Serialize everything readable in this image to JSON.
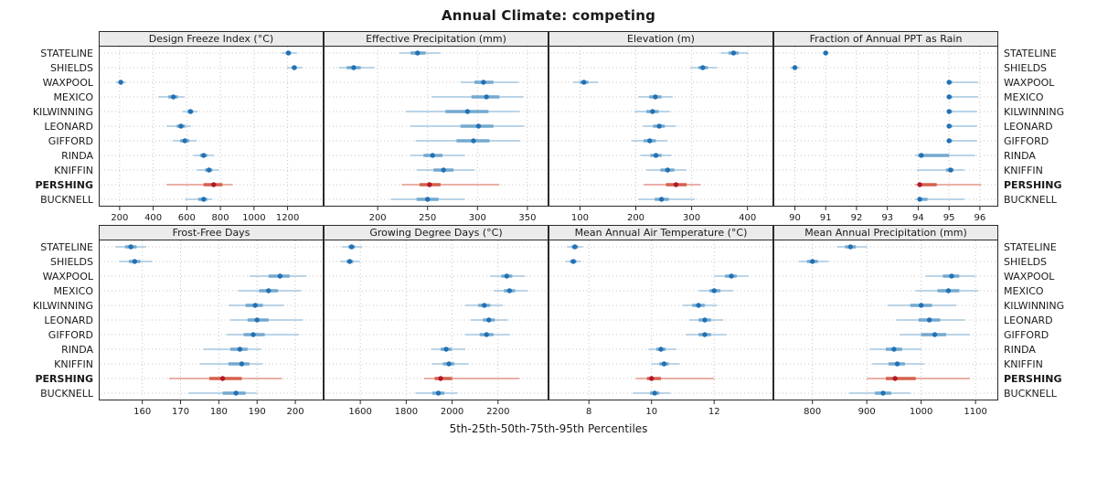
{
  "title": "Annual Climate: competing",
  "footer": "5th-25th-50th-75th-95th Percentiles",
  "colors": {
    "dot": "#2171b5",
    "range": "#74a9cf",
    "highlight_dot": "#b2182b",
    "highlight_range": "#d6604d",
    "grid": "#c4c4c4",
    "strip_bg": "#ebebeb",
    "border": "#2a2a2a",
    "text": "#1a1a1a"
  },
  "chart_data": {
    "type": "dotplot-percentiles",
    "percentiles": [
      5,
      25,
      50,
      75,
      95
    ],
    "highlight_station": "PERSHING",
    "stations": [
      "STATELINE",
      "SHIELDS",
      "WAXPOOL",
      "MEXICO",
      "KILWINNING",
      "LEONARD",
      "GIFFORD",
      "RINDA",
      "KNIFFIN",
      "PERSHING",
      "BUCKNELL"
    ],
    "panels": [
      {
        "title": "Design Freeze Index (°C)",
        "xlim": [
          130,
          1360
        ],
        "ticks": [
          200,
          400,
          600,
          800,
          1000,
          1200
        ],
        "values": [
          [
            1165,
            1190,
            1205,
            1220,
            1255
          ],
          [
            1195,
            1225,
            1240,
            1255,
            1290
          ],
          [
            180,
            198,
            207,
            216,
            235
          ],
          [
            430,
            490,
            520,
            548,
            585
          ],
          [
            575,
            605,
            622,
            638,
            665
          ],
          [
            480,
            540,
            565,
            590,
            625
          ],
          [
            515,
            560,
            588,
            615,
            660
          ],
          [
            640,
            678,
            700,
            722,
            760
          ],
          [
            660,
            708,
            732,
            752,
            792
          ],
          [
            480,
            700,
            760,
            812,
            872
          ],
          [
            590,
            668,
            700,
            722,
            752
          ]
        ]
      },
      {
        "title": "Effective Precipitation (mm)",
        "xlim": [
          155,
          362
        ],
        "ticks": [
          200,
          250,
          300,
          350
        ],
        "values": [
          [
            222,
            233,
            240,
            248,
            263
          ],
          [
            161,
            169,
            176,
            183,
            197
          ],
          [
            283,
            297,
            306,
            316,
            341
          ],
          [
            254,
            294,
            309,
            322,
            346
          ],
          [
            228,
            268,
            290,
            311,
            342
          ],
          [
            233,
            283,
            301,
            316,
            347
          ],
          [
            238,
            279,
            296,
            312,
            343
          ],
          [
            233,
            246,
            255,
            265,
            287
          ],
          [
            239,
            256,
            266,
            276,
            297
          ],
          [
            224,
            242,
            252,
            263,
            322
          ],
          [
            213,
            239,
            250,
            261,
            287
          ]
        ]
      },
      {
        "title": "Elevation (m)",
        "xlim": [
          60,
          430
        ],
        "ticks": [
          100,
          200,
          300,
          400
        ],
        "values": [
          [
            352,
            366,
            375,
            384,
            401
          ],
          [
            298,
            312,
            320,
            329,
            346
          ],
          [
            88,
            100,
            107,
            115,
            132
          ],
          [
            204,
            224,
            235,
            246,
            266
          ],
          [
            198,
            219,
            230,
            241,
            261
          ],
          [
            213,
            231,
            242,
            252,
            272
          ],
          [
            193,
            214,
            225,
            236,
            256
          ],
          [
            208,
            226,
            236,
            246,
            263
          ],
          [
            219,
            244,
            257,
            269,
            291
          ],
          [
            214,
            254,
            272,
            291,
            316
          ],
          [
            204,
            234,
            246,
            259,
            306
          ]
        ]
      },
      {
        "title": "Fraction of Annual PPT as Rain",
        "xlim": [
          89.6,
          96.3
        ],
        "ticks": [
          90,
          91,
          92,
          93,
          94,
          95,
          96
        ],
        "values": [
          [
            90.9,
            90.97,
            91.0,
            91.03,
            91.1
          ],
          [
            89.85,
            89.95,
            90.0,
            90.05,
            90.15
          ],
          [
            94.95,
            95.0,
            95.0,
            95.1,
            95.95
          ],
          [
            94.95,
            95.0,
            95.0,
            95.1,
            95.95
          ],
          [
            94.95,
            95.0,
            95.0,
            95.1,
            95.9
          ],
          [
            94.95,
            95.0,
            95.0,
            95.1,
            95.9
          ],
          [
            94.95,
            95.0,
            95.0,
            95.1,
            95.9
          ],
          [
            93.9,
            94.0,
            94.1,
            95.0,
            95.85
          ],
          [
            93.95,
            94.9,
            95.05,
            95.15,
            95.5
          ],
          [
            93.9,
            94.0,
            94.05,
            94.6,
            96.05
          ],
          [
            93.9,
            94.0,
            94.05,
            94.3,
            95.5
          ]
        ]
      },
      {
        "title": "Frost-Free Days",
        "xlim": [
          151,
          205
        ],
        "ticks": [
          160,
          170,
          180,
          190,
          200
        ],
        "values": [
          [
            153,
            155.5,
            157,
            158.5,
            161
          ],
          [
            154,
            156.5,
            158,
            159.5,
            162.5
          ],
          [
            188,
            193,
            196,
            198.5,
            203
          ],
          [
            185,
            190.5,
            193,
            195.5,
            201.5
          ],
          [
            182.5,
            187,
            189.5,
            191.5,
            197
          ],
          [
            183,
            187.5,
            190,
            193,
            202
          ],
          [
            182,
            186.5,
            189,
            192,
            201
          ],
          [
            176,
            183,
            185.5,
            187.5,
            191
          ],
          [
            175,
            182.5,
            186,
            188,
            191.5
          ],
          [
            167,
            177.5,
            181,
            186,
            196.5
          ],
          [
            172,
            181,
            184.5,
            187,
            190
          ]
        ]
      },
      {
        "title": "Growing Degree Days (°C)",
        "xlim": [
          1480,
          2380
        ],
        "ticks": [
          1600,
          1800,
          2000,
          2200
        ],
        "values": [
          [
            1520,
            1548,
            1562,
            1577,
            1607
          ],
          [
            1512,
            1540,
            1554,
            1569,
            1599
          ],
          [
            2168,
            2214,
            2238,
            2262,
            2318
          ],
          [
            2180,
            2226,
            2250,
            2274,
            2330
          ],
          [
            2058,
            2114,
            2140,
            2166,
            2222
          ],
          [
            2080,
            2134,
            2160,
            2186,
            2242
          ],
          [
            2058,
            2120,
            2150,
            2180,
            2252
          ],
          [
            1908,
            1950,
            1974,
            1998,
            2058
          ],
          [
            1914,
            1960,
            1986,
            2010,
            2070
          ],
          [
            1878,
            1924,
            1950,
            2000,
            2292
          ],
          [
            1840,
            1914,
            1940,
            1966,
            2022
          ]
        ]
      },
      {
        "title": "Mean Annual Air Temperature (°C)",
        "xlim": [
          7.0,
          13.6
        ],
        "ticks": [
          8,
          10,
          12
        ],
        "values": [
          [
            7.3,
            7.45,
            7.55,
            7.65,
            7.8
          ],
          [
            7.25,
            7.4,
            7.5,
            7.6,
            7.75
          ],
          [
            12.0,
            12.35,
            12.55,
            12.72,
            13.1
          ],
          [
            11.5,
            11.85,
            12.0,
            12.2,
            12.6
          ],
          [
            11.0,
            11.3,
            11.5,
            11.7,
            12.1
          ],
          [
            11.2,
            11.5,
            11.7,
            11.9,
            12.3
          ],
          [
            11.1,
            11.5,
            11.7,
            11.9,
            12.4
          ],
          [
            9.9,
            10.15,
            10.3,
            10.45,
            10.8
          ],
          [
            10.0,
            10.25,
            10.4,
            10.55,
            10.9
          ],
          [
            9.5,
            9.85,
            10.0,
            10.3,
            12.0
          ],
          [
            9.4,
            9.95,
            10.1,
            10.25,
            10.6
          ]
        ]
      },
      {
        "title": "Mean Annual Precipitation (mm)",
        "xlim": [
          745,
          1125
        ],
        "ticks": [
          800,
          900,
          1000,
          1100
        ],
        "values": [
          [
            845,
            860,
            870,
            880,
            900
          ],
          [
            775,
            790,
            800,
            810,
            830
          ],
          [
            1008,
            1040,
            1056,
            1070,
            1100
          ],
          [
            990,
            1030,
            1050,
            1070,
            1105
          ],
          [
            938,
            980,
            1000,
            1020,
            1065
          ],
          [
            955,
            995,
            1015,
            1035,
            1080
          ],
          [
            960,
            1000,
            1025,
            1046,
            1090
          ],
          [
            905,
            935,
            950,
            965,
            1000
          ],
          [
            910,
            940,
            956,
            970,
            1006
          ],
          [
            900,
            935,
            952,
            990,
            1090
          ],
          [
            868,
            915,
            930,
            945,
            980
          ]
        ]
      }
    ]
  }
}
